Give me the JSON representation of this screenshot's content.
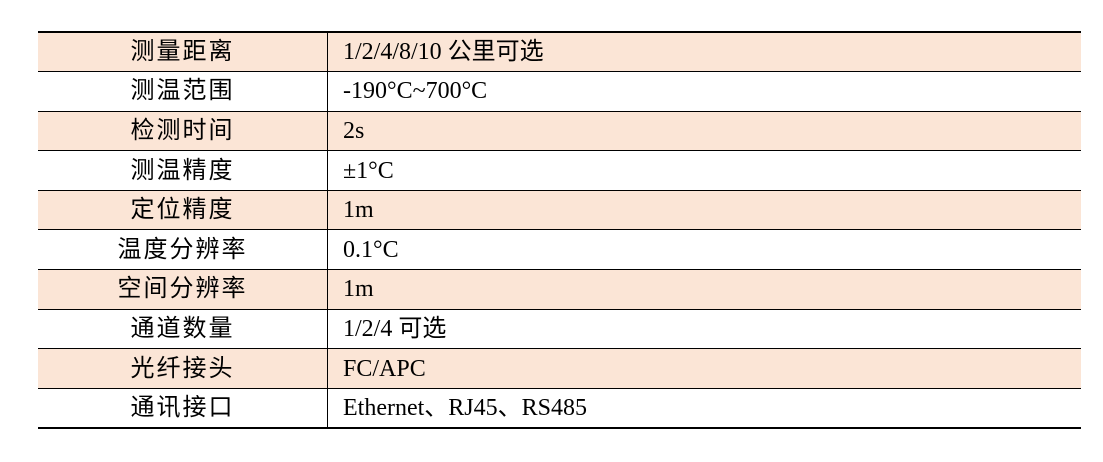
{
  "document": {
    "type": "specification-table",
    "language": "zh-CN"
  },
  "colors": {
    "shaded_row_background": "#fbe5d6",
    "plain_row_background": "#ffffff",
    "border": "#000000",
    "text": "#000000",
    "page_background": "#ffffff"
  },
  "table": {
    "columns": [
      "parameter",
      "value"
    ],
    "rows": [
      {
        "label": "测量距离",
        "value": "1/2/4/8/10 公里可选",
        "shaded": true
      },
      {
        "label": "测温范围",
        "value": "-190°C~700°C",
        "shaded": false
      },
      {
        "label": "检测时间",
        "value": "2s",
        "shaded": true
      },
      {
        "label": "测温精度",
        "value": "±1°C",
        "shaded": false
      },
      {
        "label": "定位精度",
        "value": "1m",
        "shaded": true
      },
      {
        "label": "温度分辨率",
        "value": "0.1°C",
        "shaded": false
      },
      {
        "label": "空间分辨率",
        "value": "1m",
        "shaded": true
      },
      {
        "label": "通道数量",
        "value": "1/2/4 可选",
        "shaded": false
      },
      {
        "label": "光纤接头",
        "value": "FC/APC",
        "shaded": true
      },
      {
        "label": "通讯接口",
        "value": "Ethernet、RJ45、RS485",
        "shaded": false
      }
    ]
  }
}
